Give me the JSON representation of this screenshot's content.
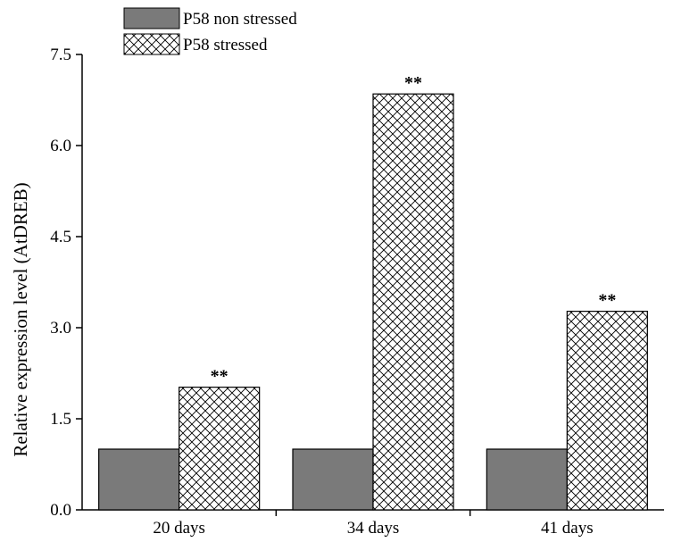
{
  "chart_data": {
    "type": "bar",
    "title": "",
    "xlabel": "",
    "ylabel": "Relative expression level (AtDREB)",
    "ylim": [
      0,
      7.5
    ],
    "yticks": [
      "0.0",
      "1.5",
      "3.0",
      "4.5",
      "6.0",
      "7.5"
    ],
    "categories": [
      "20 days",
      "34 days",
      "41 days"
    ],
    "series": [
      {
        "name": "P58 non stressed",
        "values": [
          1.0,
          1.0,
          1.0
        ],
        "color": "#7a7a7a",
        "pattern": "solid",
        "significance": [
          "",
          "",
          ""
        ]
      },
      {
        "name": "P58 stressed",
        "values": [
          2.02,
          6.85,
          3.27
        ],
        "color": "#ffffff",
        "pattern": "crosshatch",
        "significance": [
          "**",
          "**",
          "**"
        ]
      }
    ],
    "legend_position": "top-left",
    "grid": false
  }
}
